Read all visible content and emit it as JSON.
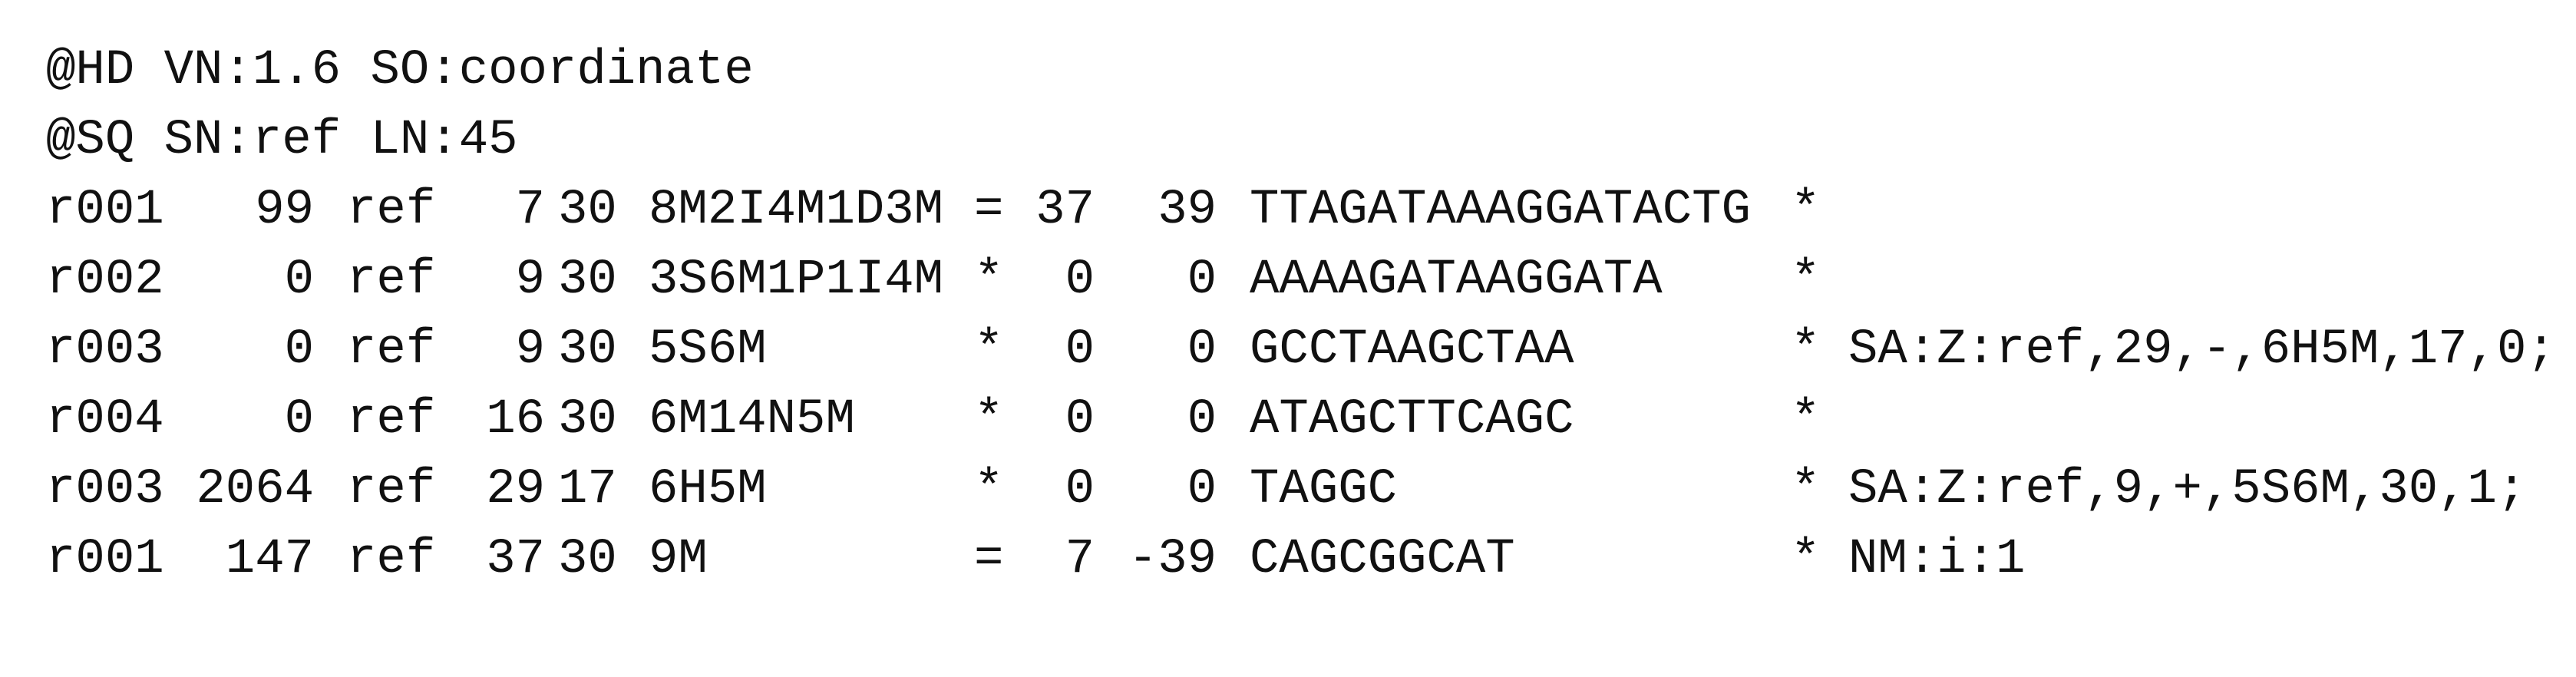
{
  "header_lines": [
    "@HD VN:1.6 SO:coordinate",
    "@SQ SN:ref LN:45"
  ],
  "records": [
    [
      "r001",
      "99",
      "ref",
      "7",
      "30",
      "8M2I4M1D3M",
      "=",
      "37",
      "39",
      "TTAGATAAAGGATACTG",
      "*"
    ],
    [
      "r002",
      "0",
      "ref",
      "9",
      "30",
      "3S6M1P1I4M",
      "*",
      "0",
      "0",
      "AAAAGATAAGGATA",
      "*"
    ],
    [
      "r003",
      "0",
      "ref",
      "9",
      "30",
      "5S6M",
      "*",
      "0",
      "0",
      "GCCTAAGCTAA",
      "*",
      "SA:Z:ref,29,-,6H5M,17,0;"
    ],
    [
      "r004",
      "0",
      "ref",
      "16",
      "30",
      "6M14N5M",
      "*",
      "0",
      "0",
      "ATAGCTTCAGC",
      "*"
    ],
    [
      "r003",
      "2064",
      "ref",
      "29",
      "17",
      "6H5M",
      "*",
      "0",
      "0",
      "TAGGC",
      "*",
      "SA:Z:ref,9,+,5S6M,30,1;"
    ],
    [
      "r001",
      "147",
      "ref",
      "37",
      "30",
      "9M",
      "=",
      "7",
      "-39",
      "CAGCGGCAT",
      "*",
      "NM:i:1"
    ]
  ]
}
